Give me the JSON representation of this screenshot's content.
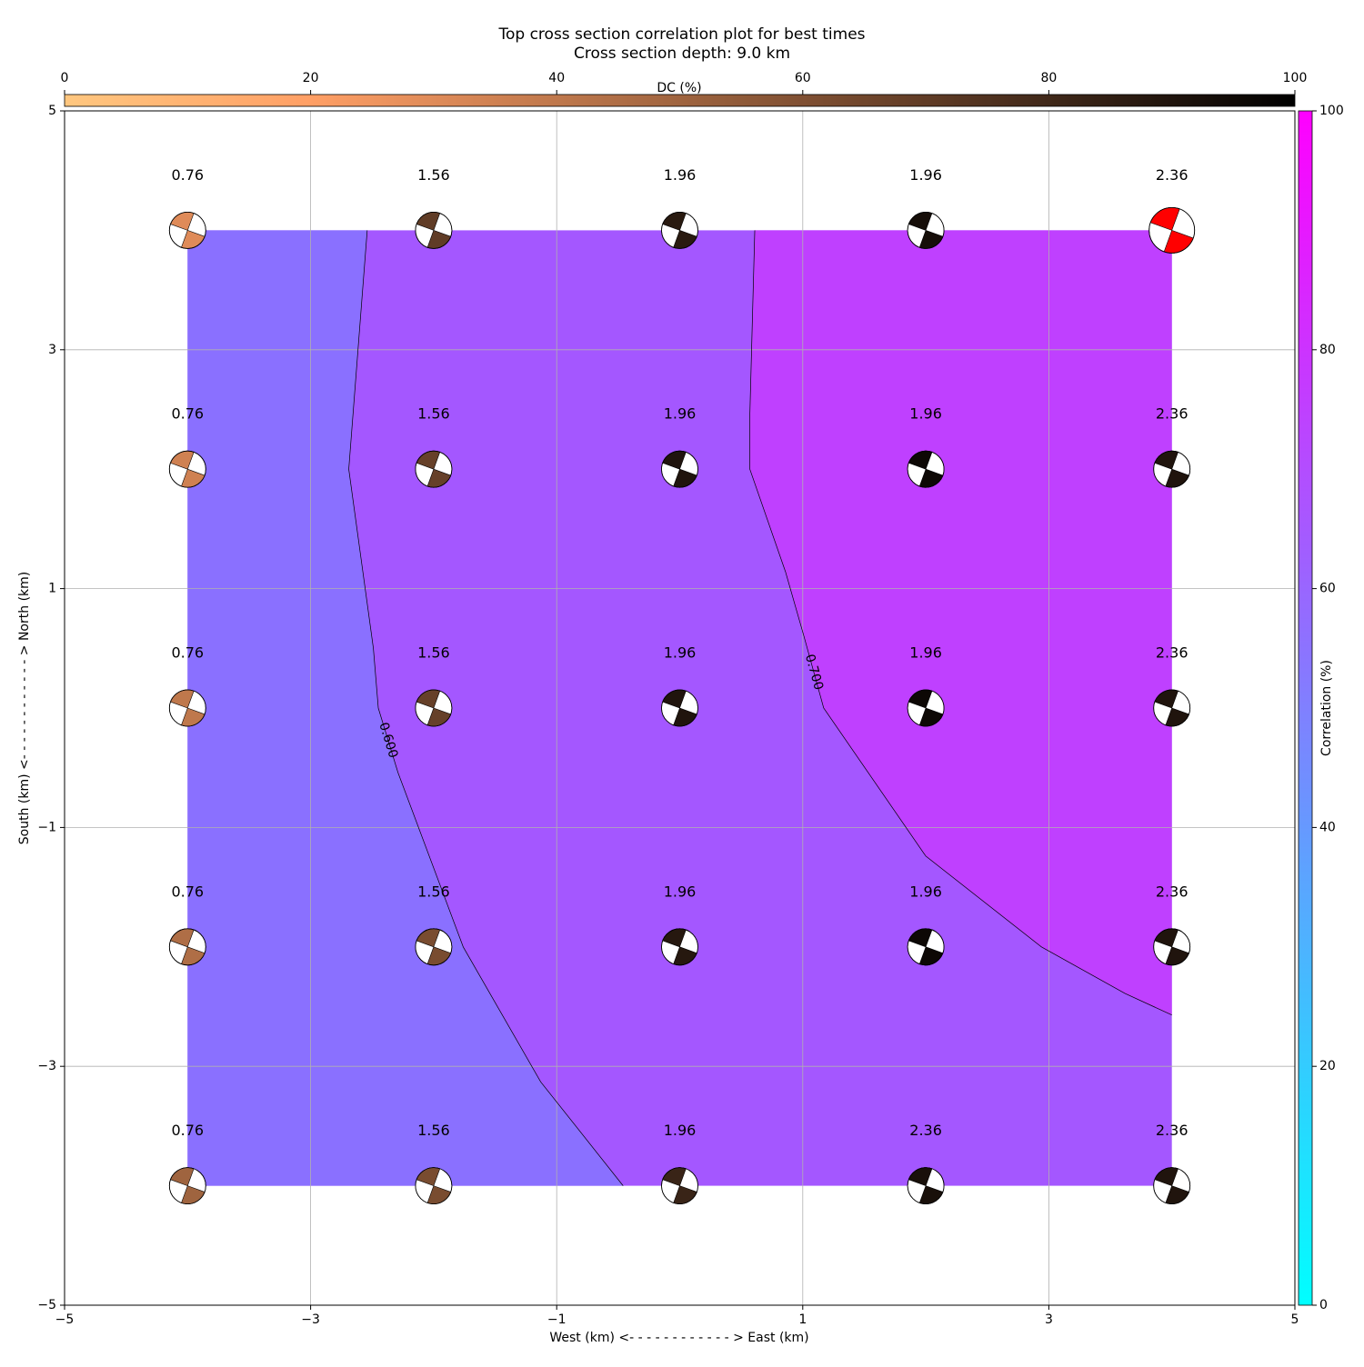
{
  "chart_data": {
    "type": "contour",
    "title": "Top cross section correlation plot for best times",
    "subtitle": "Cross section depth: 9.0 km",
    "xlabel": "West (km) <- - - - - - - - - - - - > East (km)",
    "ylabel": "South (km) <- - - - - - - - - - - - > North (km)",
    "xlim": [
      -5,
      5
    ],
    "ylim": [
      -5,
      5
    ],
    "xticks": [
      {
        "value": -5,
        "label": "−5"
      },
      {
        "value": -3,
        "label": "−3"
      },
      {
        "value": -1,
        "label": "−1"
      },
      1,
      3,
      5
    ],
    "yticks": [
      {
        "value": -5,
        "label": "−5"
      },
      {
        "value": -3,
        "label": "−3"
      },
      {
        "value": -1,
        "label": "−1"
      },
      1,
      3,
      5
    ],
    "grid": true,
    "fill_colors": [
      "#8a70ff",
      "#a457ff",
      "#bf40ff"
    ],
    "contours": [
      {
        "level": {
          "value": 0.6,
          "label": "0.600"
        },
        "x": [
          -2.54,
          -2.69,
          -2.49,
          -2.45,
          -2.29,
          -1.76,
          -1.13,
          -0.46
        ],
        "y": [
          4,
          2,
          0.5,
          0,
          -0.54,
          -2,
          -3.13,
          -4
        ]
      },
      {
        "level": {
          "value": 0.7,
          "label": "0.700"
        },
        "x": [
          0.61,
          0.57,
          0.57,
          0.86,
          1.01,
          1.17,
          2.0,
          2.94,
          3.62,
          4.0
        ],
        "y": [
          4,
          2.46,
          2,
          1.14,
          0.6,
          0,
          -1.24,
          -2.0,
          -2.39,
          -2.57
        ]
      }
    ],
    "points": [
      {
        "x": -4,
        "y": 4,
        "time": 0.76,
        "dc": 30
      },
      {
        "x": -2,
        "y": 4,
        "time": 1.56,
        "dc": 70
      },
      {
        "x": 0,
        "y": 4,
        "time": 1.96,
        "dc": 87
      },
      {
        "x": 2,
        "y": 4,
        "time": 1.96,
        "dc": 93
      },
      {
        "x": 4,
        "y": 4,
        "time": 2.36,
        "dc": 90,
        "color": "#ff0000"
      },
      {
        "x": -4,
        "y": 2,
        "time": 0.76,
        "dc": 35
      },
      {
        "x": -2,
        "y": 2,
        "time": 1.56,
        "dc": 68
      },
      {
        "x": 0,
        "y": 2,
        "time": 1.96,
        "dc": 90
      },
      {
        "x": 2,
        "y": 2,
        "time": 1.96,
        "dc": 96
      },
      {
        "x": 4,
        "y": 2,
        "time": 2.36,
        "dc": 90
      },
      {
        "x": -4,
        "y": 0,
        "time": 0.76,
        "dc": 40
      },
      {
        "x": -2,
        "y": 0,
        "time": 1.56,
        "dc": 68
      },
      {
        "x": 0,
        "y": 0,
        "time": 1.96,
        "dc": 90
      },
      {
        "x": 2,
        "y": 0,
        "time": 1.96,
        "dc": 96
      },
      {
        "x": 4,
        "y": 0,
        "time": 2.36,
        "dc": 90
      },
      {
        "x": -4,
        "y": -2,
        "time": 0.76,
        "dc": 45
      },
      {
        "x": -2,
        "y": -2,
        "time": 1.56,
        "dc": 62
      },
      {
        "x": 0,
        "y": -2,
        "time": 1.96,
        "dc": 88
      },
      {
        "x": 2,
        "y": -2,
        "time": 1.96,
        "dc": 96
      },
      {
        "x": 4,
        "y": -2,
        "time": 2.36,
        "dc": 90
      },
      {
        "x": -4,
        "y": -4,
        "time": 0.76,
        "dc": 50
      },
      {
        "x": -2,
        "y": -4,
        "time": 1.56,
        "dc": 62
      },
      {
        "x": 0,
        "y": -4,
        "time": 1.96,
        "dc": 82
      },
      {
        "x": 2,
        "y": -4,
        "time": 2.36,
        "dc": 92
      },
      {
        "x": 4,
        "y": -4,
        "time": 2.36,
        "dc": 90
      }
    ],
    "dc_colorbar": {
      "label": "DC (%)",
      "colormap": "copper_r",
      "lim": [
        0,
        100
      ],
      "ticks": [
        0,
        20,
        40,
        60,
        80,
        100
      ]
    },
    "correlation_colorbar": {
      "label": "Correlation (%)",
      "colormap": "cool",
      "lim": [
        0,
        100
      ],
      "ticks": [
        0,
        20,
        40,
        60,
        80,
        100
      ]
    }
  }
}
